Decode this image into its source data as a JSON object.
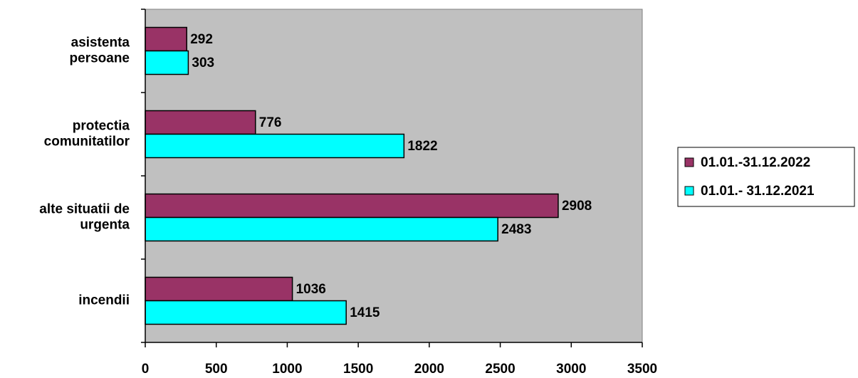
{
  "chart_data": {
    "type": "hbar",
    "categories": [
      "asistenta\npersoane",
      "protectia\ncomunitatilor",
      "alte situatii de\nurgenta",
      "incendii"
    ],
    "series": [
      {
        "name": "01.01.-31.12.2022",
        "color": "#993366",
        "values": [
          292,
          776,
          2908,
          1036
        ]
      },
      {
        "name": "01.01.- 31.12.2021",
        "color": "#00ffff",
        "values": [
          303,
          1822,
          2483,
          1415
        ]
      }
    ],
    "xlim": [
      0,
      3500
    ],
    "xticks": [
      0,
      500,
      1000,
      1500,
      2000,
      2500,
      3000,
      3500
    ],
    "legend": "right",
    "plot_background": "#c0c0c0"
  }
}
